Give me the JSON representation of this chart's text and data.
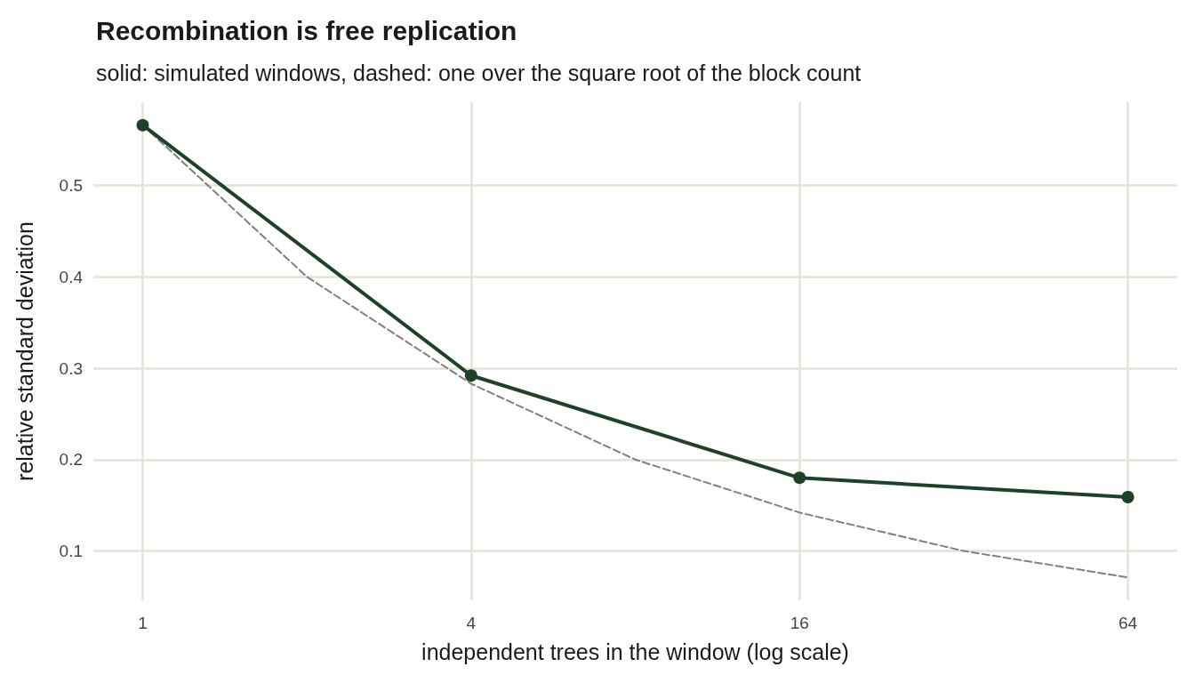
{
  "chart_data": {
    "type": "line",
    "title": "Recombination is free replication",
    "subtitle": "solid: simulated windows, dashed: one over the square root of the block count",
    "xlabel": "independent trees in the window (log scale)",
    "ylabel": "relative standard deviation",
    "log": "x",
    "grid": true,
    "xlim": [
      0.812,
      78.8
    ],
    "xticks": [
      1,
      4,
      16,
      64
    ],
    "ylim": [
      0.046,
      0.591
    ],
    "yticks": [
      0.1,
      0.2,
      0.3,
      0.4,
      0.5
    ],
    "series": [
      {
        "x": [
          1,
          4,
          16,
          64
        ],
        "values": [
          0.566,
          0.292,
          0.18,
          0.159
        ],
        "color": "#1f4029",
        "marker": "circle",
        "line_style": "solid"
      },
      {
        "x": [
          1,
          2,
          4,
          8,
          16,
          32,
          64
        ],
        "values": [
          0.566,
          0.4,
          0.283,
          0.2,
          0.142,
          0.1,
          0.071
        ],
        "color": "#808080",
        "marker": "none",
        "line_style": "dashed"
      }
    ]
  }
}
